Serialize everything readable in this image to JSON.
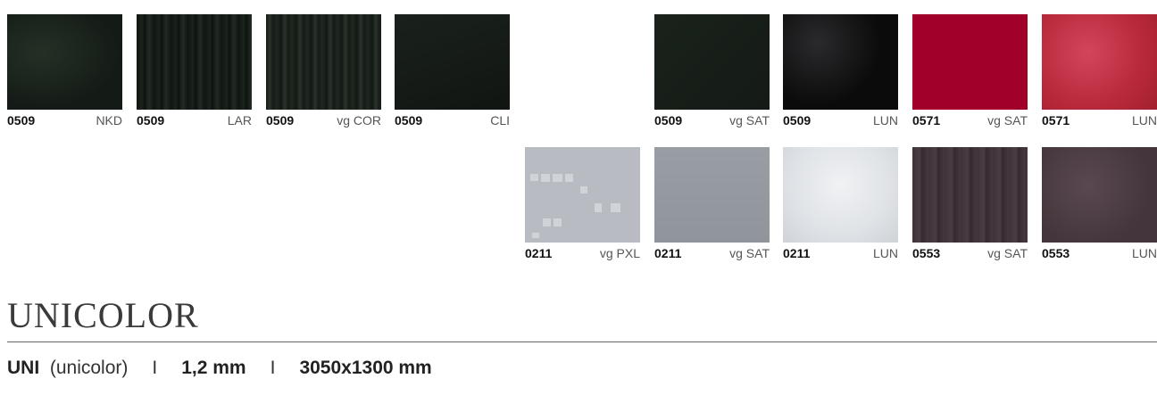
{
  "swatches_row1": [
    {
      "code": "0509",
      "finish": "NKD",
      "texture": "black-nkd"
    },
    {
      "code": "0509",
      "finish": "LAR",
      "texture": "black-lar"
    },
    {
      "code": "0509",
      "finish": "vg COR",
      "texture": "black-cor"
    },
    {
      "code": "0509",
      "finish": "CLI",
      "texture": "black-cli"
    },
    {
      "code": "0509",
      "finish": "vg SAT",
      "texture": "black-sat"
    },
    {
      "code": "0509",
      "finish": "LUN",
      "texture": "black-lun"
    },
    {
      "code": "0571",
      "finish": "vg SAT",
      "texture": "red-sat"
    },
    {
      "code": "0571",
      "finish": "LUN",
      "texture": "red-lun"
    }
  ],
  "swatches_row2": [
    {
      "code": "0211",
      "finish": "vg PXL",
      "texture": "grey-pxl"
    },
    {
      "code": "0211",
      "finish": "vg SAT",
      "texture": "grey-sat"
    },
    {
      "code": "0211",
      "finish": "LUN",
      "texture": "grey-lun"
    },
    {
      "code": "0553",
      "finish": "vg SAT",
      "texture": "brown-sat"
    },
    {
      "code": "0553",
      "finish": "LUN",
      "texture": "brown-lun"
    }
  ],
  "section": {
    "title": "UNICOLOR",
    "spec_code": "UNI",
    "spec_name": "(unicolor)",
    "separator": "I",
    "thickness": "1,2 mm",
    "size": "3050x1300 mm"
  }
}
